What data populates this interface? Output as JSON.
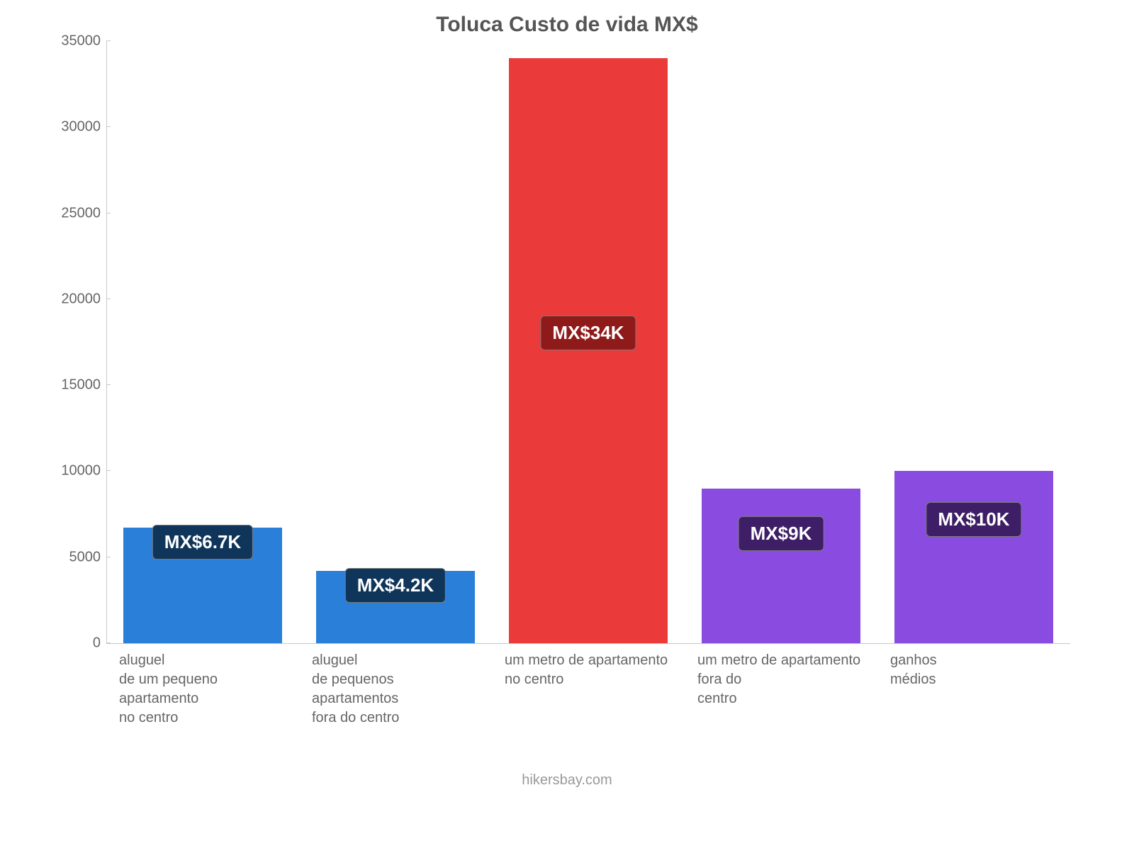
{
  "chart": {
    "type": "bar",
    "title": "Toluca Custo de vida MX$",
    "title_fontsize": 30,
    "title_color": "#555555",
    "background_color": "#ffffff",
    "axis_color": "#c8c8c8",
    "tick_label_color": "#666666",
    "tick_label_fontsize": 20,
    "bar_width_ratio": 0.82,
    "data_label_fontsize": 26,
    "data_label_text_color": "#ffffff",
    "ylim_min": 0,
    "ylim_max": 35000,
    "ytick_step": 5000,
    "yticks": [
      0,
      5000,
      10000,
      15000,
      20000,
      25000,
      30000,
      35000
    ],
    "categories": [
      "aluguel\nde um pequeno\napartamento\nno centro",
      "aluguel\nde pequenos\napartamentos\nfora do centro",
      "um metro de apartamento\nno centro",
      "um metro de apartamento\nfora do\ncentro",
      "ganhos\nmédios"
    ],
    "values": [
      6700,
      4200,
      34000,
      9000,
      10000
    ],
    "value_labels": [
      "MX$6.7K",
      "MX$4.2K",
      "MX$34K",
      "MX$9K",
      "MX$10K"
    ],
    "bar_colors": [
      "#2a7fd9",
      "#2a7fd9",
      "#ea3a3a",
      "#8a4ce0",
      "#8a4ce0"
    ],
    "label_bg_colors": [
      "#0f355a",
      "#0f355a",
      "#8f1a1a",
      "#3e1e66",
      "#3e1e66"
    ],
    "label_border_colors": [
      "#7a7a7a",
      "#7a7a7a",
      "#7a7a7a",
      "#7a7a7a",
      "#7a7a7a"
    ],
    "footer": "hikersbay.com",
    "footer_color": "#999999",
    "footer_fontsize": 20
  }
}
